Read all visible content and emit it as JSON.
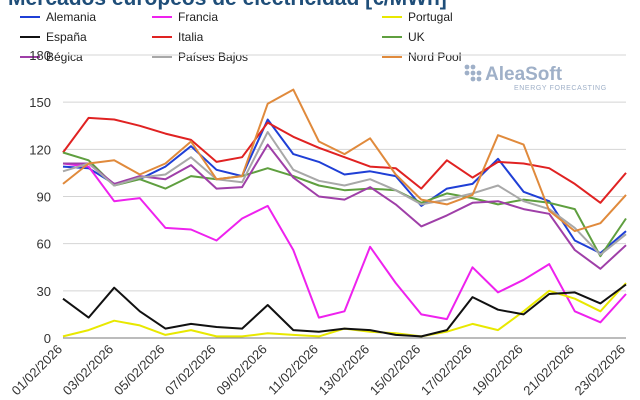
{
  "chart_data": {
    "type": "line",
    "title": "Mercados europeos de electricidad [€/MWh]",
    "logo": {
      "name": "AleaSoft",
      "tagline": "ENERGY FORECASTING"
    },
    "ylim": [
      0,
      180
    ],
    "yticks": [
      "0",
      "30",
      "60",
      "90",
      "120",
      "150",
      "180"
    ],
    "grid": true,
    "legend_position": "top",
    "x_tick_labels": [
      "01/02/2026",
      "03/02/2026",
      "05/02/2026",
      "07/02/2026",
      "09/02/2026",
      "11/02/2026",
      "13/02/2026",
      "15/02/2026",
      "17/02/2026",
      "19/02/2026",
      "21/02/2026",
      "23/02/2026"
    ],
    "x": [
      "01/02/2026",
      "02/02/2026",
      "03/02/2026",
      "04/02/2026",
      "05/02/2026",
      "06/02/2026",
      "07/02/2026",
      "08/02/2026",
      "09/02/2026",
      "10/02/2026",
      "11/02/2026",
      "12/02/2026",
      "13/02/2026",
      "14/02/2026",
      "15/02/2026",
      "16/02/2026",
      "17/02/2026",
      "18/02/2026",
      "19/02/2026",
      "20/02/2026",
      "21/02/2026",
      "22/02/2026",
      "23/02/2026"
    ],
    "series": [
      {
        "name": "Alemania",
        "color": "#1f3fd6",
        "values": [
          109,
          108,
          98,
          101,
          109,
          122,
          107,
          103,
          139,
          117,
          112,
          104,
          106,
          103,
          84,
          95,
          98,
          114,
          93,
          87,
          62,
          54,
          68
        ]
      },
      {
        "name": "Francia",
        "color": "#ee22ee",
        "values": [
          111,
          109,
          87,
          89,
          70,
          69,
          62,
          76,
          84,
          56,
          13,
          17,
          58,
          35,
          15,
          12,
          45,
          29,
          37,
          47,
          17,
          10,
          28
        ]
      },
      {
        "name": "Portugal",
        "color": "#e8e800",
        "values": [
          1,
          5,
          11,
          8,
          2,
          5,
          1,
          1,
          3,
          2,
          1,
          6,
          4,
          3,
          1,
          4,
          9,
          5,
          17,
          30,
          25,
          17,
          35
        ]
      },
      {
        "name": "España",
        "color": "#111111",
        "values": [
          25,
          13,
          32,
          17,
          6,
          9,
          7,
          6,
          21,
          5,
          4,
          6,
          5,
          2,
          1,
          5,
          26,
          18,
          15,
          28,
          29,
          22,
          34
        ]
      },
      {
        "name": "Italia",
        "color": "#e02222",
        "values": [
          118,
          140,
          139,
          135,
          130,
          126,
          112,
          115,
          137,
          128,
          121,
          115,
          109,
          108,
          95,
          113,
          102,
          112,
          111,
          108,
          98,
          86,
          105
        ]
      },
      {
        "name": "UK",
        "color": "#5f9f3f",
        "values": [
          118,
          113,
          97,
          101,
          95,
          103,
          101,
          103,
          108,
          103,
          97,
          94,
          95,
          94,
          86,
          92,
          89,
          85,
          88,
          86,
          82,
          52,
          76
        ]
      },
      {
        "name": "Bégica",
        "color": "#9f3fa8",
        "values": [
          111,
          111,
          98,
          103,
          101,
          110,
          95,
          96,
          123,
          102,
          90,
          88,
          96,
          85,
          71,
          78,
          86,
          87,
          82,
          79,
          56,
          44,
          59
        ]
      },
      {
        "name": "Países Bajos",
        "color": "#a8a8a8",
        "values": [
          106,
          111,
          97,
          102,
          104,
          115,
          101,
          99,
          131,
          107,
          100,
          97,
          101,
          94,
          85,
          88,
          92,
          97,
          87,
          82,
          70,
          53,
          66
        ]
      },
      {
        "name": "Nord Pool",
        "color": "#e08a3c",
        "values": [
          98,
          111,
          113,
          104,
          111,
          125,
          101,
          103,
          149,
          158,
          125,
          117,
          127,
          104,
          88,
          85,
          91,
          129,
          123,
          81,
          68,
          73,
          91
        ]
      }
    ]
  }
}
